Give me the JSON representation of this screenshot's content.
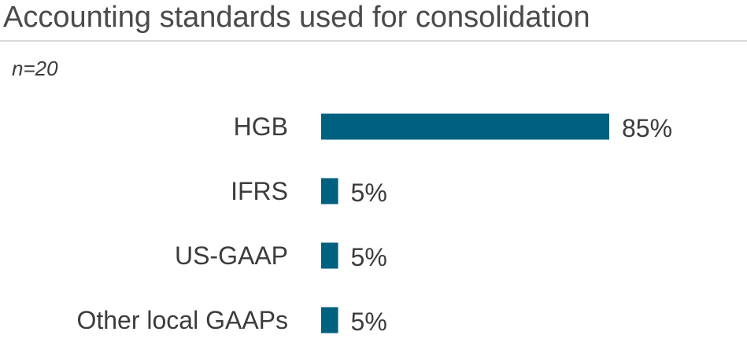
{
  "title": "Accounting standards used for consolidation",
  "subtitle": "n=20",
  "colors": {
    "bar": "#00607f",
    "text": "#3c3c3c",
    "divider": "#d9d9d9"
  },
  "chart_data": {
    "type": "bar",
    "orientation": "horizontal",
    "categories": [
      "HGB",
      "IFRS",
      "US-GAAP",
      "Other local GAAPs"
    ],
    "values": [
      85,
      5,
      5,
      5
    ],
    "value_labels": [
      "85%",
      "5%",
      "5%",
      "5%"
    ],
    "unit": "%",
    "xlim": [
      0,
      85
    ],
    "grid": false,
    "legend": "none"
  }
}
